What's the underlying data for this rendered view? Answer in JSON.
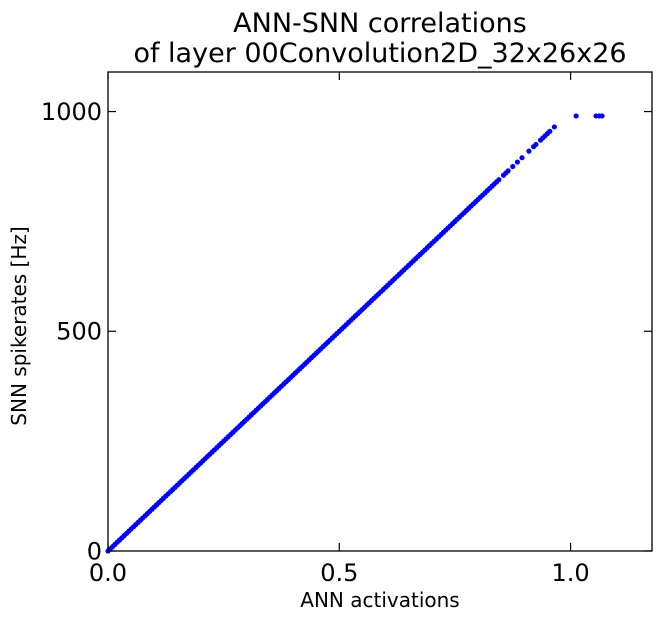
{
  "chart_data": {
    "type": "scatter",
    "title": [
      "ANN-SNN correlations",
      "of layer 00Convolution2D_32x26x26"
    ],
    "xlabel": "ANN activations",
    "ylabel": "SNN spikerates [Hz]",
    "xlim": [
      0.0,
      1.176
    ],
    "ylim": [
      0,
      1090
    ],
    "xticks": [
      {
        "value": 0.0,
        "label": "0.0"
      },
      {
        "value": 0.5,
        "label": "0.5"
      },
      {
        "value": 1.0,
        "label": "1.0"
      }
    ],
    "yticks": [
      {
        "value": 0,
        "label": "0"
      },
      {
        "value": 500,
        "label": "500"
      },
      {
        "value": 1000,
        "label": "1000"
      }
    ],
    "grid": false,
    "marker_color": "#0000ff",
    "series": [
      {
        "points": [
          [
            0.0,
            0
          ],
          [
            0.005,
            5
          ],
          [
            0.01,
            10
          ],
          [
            0.015,
            15
          ],
          [
            0.02,
            20
          ],
          [
            0.025,
            25
          ],
          [
            0.03,
            30
          ],
          [
            0.035,
            35
          ],
          [
            0.04,
            40
          ],
          [
            0.045,
            45
          ],
          [
            0.05,
            50
          ],
          [
            0.055,
            55
          ],
          [
            0.06,
            60
          ],
          [
            0.065,
            65
          ],
          [
            0.07,
            70
          ],
          [
            0.075,
            75
          ],
          [
            0.08,
            80
          ],
          [
            0.085,
            85
          ],
          [
            0.09,
            90
          ],
          [
            0.095,
            95
          ],
          [
            0.1,
            100
          ],
          [
            0.105,
            105
          ],
          [
            0.11,
            110
          ],
          [
            0.115,
            115
          ],
          [
            0.12,
            120
          ],
          [
            0.125,
            125
          ],
          [
            0.13,
            130
          ],
          [
            0.135,
            135
          ],
          [
            0.14,
            140
          ],
          [
            0.145,
            145
          ],
          [
            0.15,
            150
          ],
          [
            0.155,
            155
          ],
          [
            0.16,
            160
          ],
          [
            0.165,
            165
          ],
          [
            0.17,
            170
          ],
          [
            0.175,
            175
          ],
          [
            0.18,
            180
          ],
          [
            0.185,
            185
          ],
          [
            0.19,
            190
          ],
          [
            0.195,
            195
          ],
          [
            0.2,
            200
          ],
          [
            0.205,
            205
          ],
          [
            0.21,
            210
          ],
          [
            0.215,
            215
          ],
          [
            0.22,
            220
          ],
          [
            0.225,
            225
          ],
          [
            0.23,
            230
          ],
          [
            0.235,
            235
          ],
          [
            0.24,
            240
          ],
          [
            0.245,
            245
          ],
          [
            0.25,
            250
          ],
          [
            0.255,
            255
          ],
          [
            0.26,
            260
          ],
          [
            0.265,
            265
          ],
          [
            0.27,
            270
          ],
          [
            0.275,
            275
          ],
          [
            0.28,
            280
          ],
          [
            0.285,
            285
          ],
          [
            0.29,
            290
          ],
          [
            0.295,
            295
          ],
          [
            0.3,
            300
          ],
          [
            0.305,
            305
          ],
          [
            0.31,
            310
          ],
          [
            0.315,
            315
          ],
          [
            0.32,
            320
          ],
          [
            0.325,
            325
          ],
          [
            0.33,
            330
          ],
          [
            0.335,
            335
          ],
          [
            0.34,
            340
          ],
          [
            0.345,
            345
          ],
          [
            0.35,
            350
          ],
          [
            0.355,
            355
          ],
          [
            0.36,
            360
          ],
          [
            0.365,
            365
          ],
          [
            0.37,
            370
          ],
          [
            0.375,
            375
          ],
          [
            0.38,
            380
          ],
          [
            0.385,
            385
          ],
          [
            0.39,
            390
          ],
          [
            0.395,
            395
          ],
          [
            0.4,
            400
          ],
          [
            0.405,
            405
          ],
          [
            0.41,
            410
          ],
          [
            0.415,
            415
          ],
          [
            0.42,
            420
          ],
          [
            0.425,
            425
          ],
          [
            0.43,
            430
          ],
          [
            0.435,
            435
          ],
          [
            0.44,
            440
          ],
          [
            0.445,
            445
          ],
          [
            0.45,
            450
          ],
          [
            0.455,
            455
          ],
          [
            0.46,
            460
          ],
          [
            0.465,
            465
          ],
          [
            0.47,
            470
          ],
          [
            0.475,
            475
          ],
          [
            0.48,
            480
          ],
          [
            0.485,
            485
          ],
          [
            0.49,
            490
          ],
          [
            0.495,
            495
          ],
          [
            0.5,
            500
          ],
          [
            0.505,
            505
          ],
          [
            0.51,
            510
          ],
          [
            0.515,
            515
          ],
          [
            0.52,
            520
          ],
          [
            0.525,
            525
          ],
          [
            0.53,
            530
          ],
          [
            0.535,
            535
          ],
          [
            0.54,
            540
          ],
          [
            0.545,
            545
          ],
          [
            0.55,
            550
          ],
          [
            0.555,
            555
          ],
          [
            0.56,
            560
          ],
          [
            0.565,
            565
          ],
          [
            0.57,
            570
          ],
          [
            0.575,
            575
          ],
          [
            0.58,
            580
          ],
          [
            0.585,
            585
          ],
          [
            0.59,
            590
          ],
          [
            0.595,
            595
          ],
          [
            0.6,
            600
          ],
          [
            0.605,
            605
          ],
          [
            0.61,
            610
          ],
          [
            0.615,
            615
          ],
          [
            0.62,
            620
          ],
          [
            0.625,
            625
          ],
          [
            0.63,
            630
          ],
          [
            0.635,
            635
          ],
          [
            0.64,
            640
          ],
          [
            0.645,
            645
          ],
          [
            0.65,
            650
          ],
          [
            0.655,
            655
          ],
          [
            0.66,
            660
          ],
          [
            0.665,
            665
          ],
          [
            0.67,
            670
          ],
          [
            0.675,
            675
          ],
          [
            0.68,
            680
          ],
          [
            0.685,
            685
          ],
          [
            0.69,
            690
          ],
          [
            0.695,
            695
          ],
          [
            0.7,
            700
          ],
          [
            0.705,
            705
          ],
          [
            0.71,
            710
          ],
          [
            0.715,
            715
          ],
          [
            0.72,
            720
          ],
          [
            0.725,
            725
          ],
          [
            0.73,
            730
          ],
          [
            0.735,
            735
          ],
          [
            0.74,
            740
          ],
          [
            0.745,
            745
          ],
          [
            0.75,
            750
          ],
          [
            0.755,
            755
          ],
          [
            0.76,
            760
          ],
          [
            0.765,
            765
          ],
          [
            0.77,
            770
          ],
          [
            0.775,
            775
          ],
          [
            0.78,
            780
          ],
          [
            0.785,
            785
          ],
          [
            0.79,
            790
          ],
          [
            0.795,
            795
          ],
          [
            0.8,
            800
          ],
          [
            0.805,
            805
          ],
          [
            0.81,
            810
          ],
          [
            0.815,
            815
          ],
          [
            0.82,
            820
          ],
          [
            0.825,
            825
          ],
          [
            0.83,
            830
          ],
          [
            0.835,
            835
          ],
          [
            0.84,
            840
          ],
          [
            0.845,
            845
          ],
          [
            0.855,
            855
          ],
          [
            0.86,
            860
          ],
          [
            0.865,
            865
          ],
          [
            0.875,
            875
          ],
          [
            0.885,
            885
          ],
          [
            0.895,
            895
          ],
          [
            0.91,
            910
          ],
          [
            0.92,
            920
          ],
          [
            0.925,
            925
          ],
          [
            0.935,
            935
          ],
          [
            0.94,
            940
          ],
          [
            0.945,
            945
          ],
          [
            0.95,
            950
          ],
          [
            0.955,
            955
          ],
          [
            0.965,
            965
          ],
          [
            1.012,
            990
          ],
          [
            1.055,
            990
          ],
          [
            1.062,
            990
          ],
          [
            1.068,
            990
          ]
        ]
      }
    ]
  }
}
